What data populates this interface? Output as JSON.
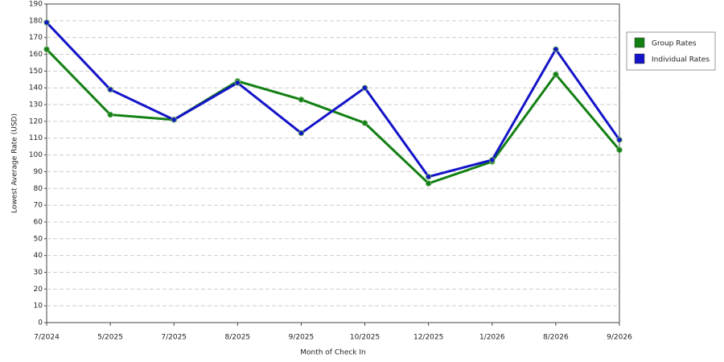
{
  "chart_data": {
    "type": "line",
    "x_label": "Month of Check In",
    "y_label": "Lowest Average Rate (USD)",
    "categories": [
      "7/2024",
      "5/2025",
      "7/2025",
      "8/2025",
      "9/2025",
      "10/2025",
      "12/2025",
      "1/2026",
      "8/2026",
      "9/2026"
    ],
    "series": [
      {
        "name": "Group Rates",
        "color": "#138013",
        "values": [
          163,
          124,
          121,
          144,
          133,
          119,
          83,
          96,
          148,
          103
        ]
      },
      {
        "name": "Individual Rates",
        "color": "#1414c8",
        "values": [
          179,
          139,
          121,
          143,
          113,
          140,
          87,
          97,
          163,
          109
        ]
      }
    ],
    "ylim": [
      0,
      190
    ],
    "yticks": [
      0,
      10,
      20,
      30,
      40,
      50,
      60,
      70,
      80,
      90,
      100,
      110,
      120,
      130,
      140,
      150,
      160,
      170,
      180,
      190
    ],
    "grid": true,
    "legend": "right"
  }
}
